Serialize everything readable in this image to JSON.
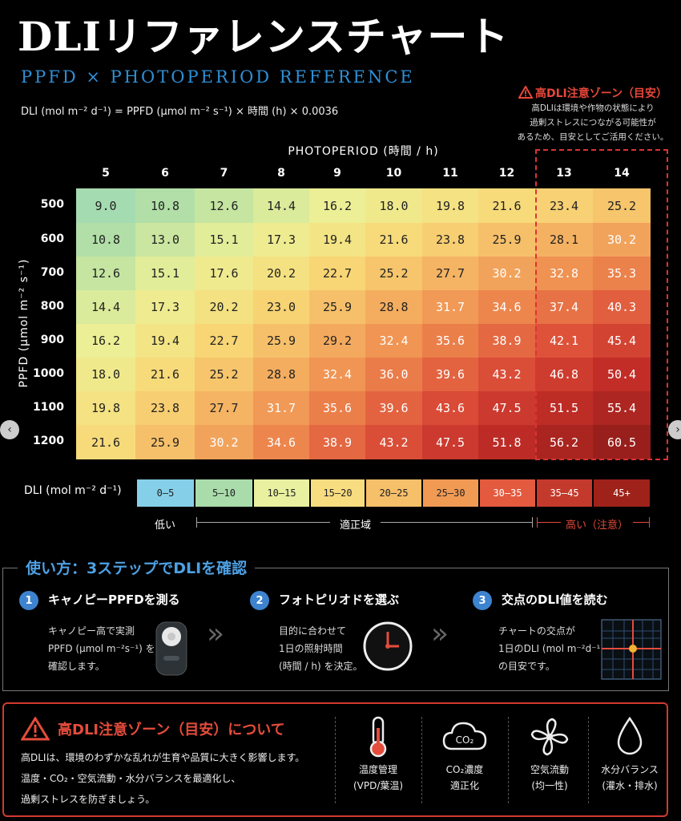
{
  "title": "DLIリファレンスチャート",
  "subtitle": "PPFD × PHOTOPERIOD REFERENCE",
  "formula": "DLI (mol m⁻² d⁻¹) = PPFD (μmol m⁻² s⁻¹) × 時間 (h) × 0.0036",
  "warning_box": {
    "title": "高DLI注意ゾーン（目安）",
    "lines": [
      "高DLIは環境や作物の状態により",
      "過剰ストレスにつながる可能性が",
      "あるため、目安としてご活用ください。"
    ]
  },
  "chart_data": {
    "type": "heatmap",
    "xlabel": "PHOTOPERIOD (時間 / h)",
    "ylabel": "PPFD (μmol m⁻² s⁻¹)",
    "x": [
      5,
      6,
      7,
      8,
      9,
      10,
      11,
      12,
      13,
      14
    ],
    "y": [
      500,
      600,
      700,
      800,
      900,
      1000,
      1100,
      1200
    ],
    "values": [
      [
        "9.0",
        "10.8",
        "12.6",
        "14.4",
        "16.2",
        "18.0",
        "19.8",
        "21.6",
        "23.4",
        "25.2"
      ],
      [
        "10.8",
        "13.0",
        "15.1",
        "17.3",
        "19.4",
        "21.6",
        "23.8",
        "25.9",
        "28.1",
        "30.2"
      ],
      [
        "12.6",
        "15.1",
        "17.6",
        "20.2",
        "22.7",
        "25.2",
        "27.7",
        "30.2",
        "32.8",
        "35.3"
      ],
      [
        "14.4",
        "17.3",
        "20.2",
        "23.0",
        "25.9",
        "28.8",
        "31.7",
        "34.6",
        "37.4",
        "40.3"
      ],
      [
        "16.2",
        "19.4",
        "22.7",
        "25.9",
        "29.2",
        "32.4",
        "35.6",
        "38.9",
        "42.1",
        "45.4"
      ],
      [
        "18.0",
        "21.6",
        "25.2",
        "28.8",
        "32.4",
        "36.0",
        "39.6",
        "43.2",
        "46.8",
        "50.4"
      ],
      [
        "19.8",
        "23.8",
        "27.7",
        "31.7",
        "35.6",
        "39.6",
        "43.6",
        "47.5",
        "51.5",
        "55.4"
      ],
      [
        "21.6",
        "25.9",
        "30.2",
        "34.6",
        "38.9",
        "43.2",
        "47.5",
        "51.8",
        "56.2",
        "60.5"
      ]
    ],
    "highlight_columns": [
      13,
      14
    ],
    "legend": {
      "title": "DLI (mol m⁻² d⁻¹)",
      "bins": [
        {
          "label": "0–5",
          "color": "#86cfe8"
        },
        {
          "label": "5–10",
          "color": "#a9dcaa"
        },
        {
          "label": "10–15",
          "color": "#e9f0a0"
        },
        {
          "label": "15–20",
          "color": "#f8dc80"
        },
        {
          "label": "20–25",
          "color": "#f6bf6a"
        },
        {
          "label": "25–30",
          "color": "#f19a54"
        },
        {
          "label": "30–35",
          "color": "#e35a3e"
        },
        {
          "label": "35–45",
          "color": "#c33a2c"
        },
        {
          "label": "45+",
          "color": "#9e2219"
        }
      ],
      "low": "低い",
      "optimal": "適正域",
      "high": "高い（注意）"
    }
  },
  "how_to": {
    "title": "使い方：3ステップでDLIを確認",
    "steps": [
      {
        "num": "1",
        "title": "キャノピーPPFDを測る",
        "lines": [
          "キャノピー高で実測",
          "PPFD (μmol m⁻²s⁻¹) を",
          "確認します。"
        ]
      },
      {
        "num": "2",
        "title": "フォトピリオドを選ぶ",
        "lines": [
          "目的に合わせて",
          "1日の照射時間",
          "(時間 / h) を決定。"
        ]
      },
      {
        "num": "3",
        "title": "交点のDLI値を読む",
        "lines": [
          "チャートの交点が",
          "1日のDLI (mol m⁻²d⁻¹)",
          "の目安です。"
        ]
      }
    ]
  },
  "caution": {
    "title": "高DLI注意ゾーン（目安）について",
    "lines": [
      "高DLIは、環境のわずかな乱れが生育や品質に大きく影響します。",
      "温度・CO₂・空気流動・水分バランスを最適化し、",
      "過剰ストレスを防ぎましょう。"
    ],
    "factors": [
      {
        "icon": "thermometer-icon",
        "lines": [
          "温度管理",
          "(VPD/葉温)"
        ]
      },
      {
        "icon": "co2-cloud-icon",
        "lines": [
          "CO₂濃度",
          "適正化"
        ]
      },
      {
        "icon": "fan-icon",
        "lines": [
          "空気流動",
          "(均一性)"
        ]
      },
      {
        "icon": "water-drop-icon",
        "lines": [
          "水分バランス",
          "(灌水・排水)"
        ]
      }
    ]
  }
}
